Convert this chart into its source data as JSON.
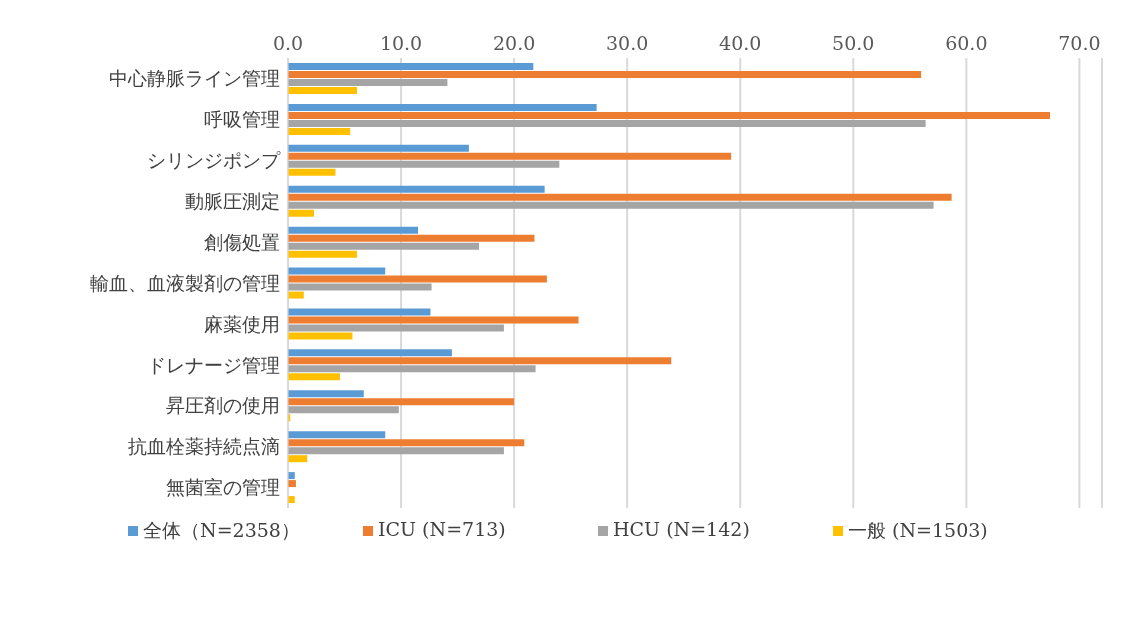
{
  "chart_data": {
    "type": "bar",
    "orientation": "horizontal",
    "categories": [
      "中心静脈ライン管理",
      "呼吸管理",
      "シリンジポンプ",
      "動脈圧測定",
      "創傷処置",
      "輸血、血液製剤の管理",
      "麻薬使用",
      "ドレナージ管理",
      "昇圧剤の使用",
      "抗血栓薬持続点滴",
      "無菌室の管理"
    ],
    "series": [
      {
        "name": "全体（N=2358）",
        "color": "#5b9bd5",
        "values": [
          21.7,
          27.3,
          16.0,
          22.7,
          11.5,
          8.6,
          12.6,
          14.5,
          6.7,
          8.6,
          0.6
        ]
      },
      {
        "name": "ICU (N=713)",
        "color": "#ed7d31",
        "values": [
          56.0,
          67.4,
          39.2,
          58.7,
          21.8,
          22.9,
          25.7,
          33.9,
          20.0,
          20.9,
          0.7
        ]
      },
      {
        "name": "HCU (N=142)",
        "color": "#a5a5a5",
        "values": [
          14.1,
          56.4,
          24.0,
          57.1,
          16.9,
          12.7,
          19.1,
          21.9,
          9.8,
          19.1,
          0
        ]
      },
      {
        "name": "一般 (N=1503)",
        "color": "#ffc000",
        "values": [
          6.1,
          5.5,
          4.2,
          2.3,
          6.1,
          1.4,
          5.7,
          4.6,
          0.2,
          1.7,
          0.6
        ]
      }
    ],
    "xlim": [
      0,
      72
    ],
    "xticks": [
      {
        "value": 0,
        "label": "0.0"
      },
      {
        "value": 10,
        "label": "10.0"
      },
      {
        "value": 20,
        "label": "20.0"
      },
      {
        "value": 30,
        "label": "30.0"
      },
      {
        "value": 40,
        "label": "40.0"
      },
      {
        "value": 50,
        "label": "50.0"
      },
      {
        "value": 60,
        "label": "60.0"
      },
      {
        "value": 70,
        "label": "70.0"
      }
    ],
    "grid": "x",
    "legend": "bottom"
  }
}
